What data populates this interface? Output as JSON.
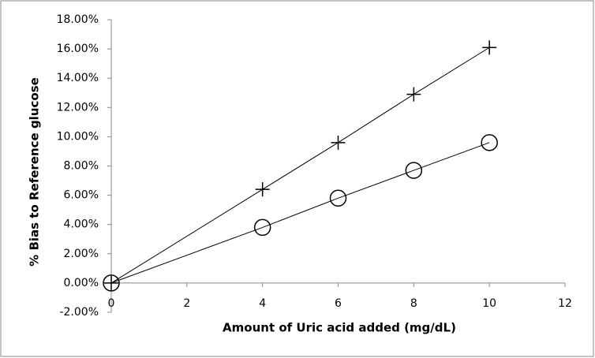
{
  "chart_data": {
    "type": "line",
    "x_label": "Amount of Uric acid added (mg/dL)",
    "y_label": "% Bias to Reference glucose",
    "series": [
      {
        "color": "#000000",
        "marker": "plus",
        "x": [
          0,
          4,
          6,
          8,
          10
        ],
        "values": [
          0,
          6.4,
          9.6,
          12.9,
          16.1
        ]
      },
      {
        "color": "#000000",
        "marker": "circle",
        "x": [
          0,
          4,
          6,
          8,
          10
        ],
        "values": [
          0,
          3.8,
          5.8,
          7.7,
          9.6
        ]
      }
    ],
    "xlim": [
      0,
      12
    ],
    "xticks": [
      0,
      2,
      4,
      6,
      8,
      10,
      12
    ],
    "ylim": [
      -2,
      18
    ],
    "yticks": [
      {
        "value": -2,
        "label": "-2.00%"
      },
      {
        "value": 0,
        "label": "0.00%"
      },
      {
        "value": 2,
        "label": "2.00%"
      },
      {
        "value": 4,
        "label": "4.00%"
      },
      {
        "value": 6,
        "label": "6.00%"
      },
      {
        "value": 8,
        "label": "8.00%"
      },
      {
        "value": 10,
        "label": "10.00%"
      },
      {
        "value": 12,
        "label": "12.00%"
      },
      {
        "value": 14,
        "label": "14.00%"
      },
      {
        "value": 16,
        "label": "16.00%"
      },
      {
        "value": 18,
        "label": "18.00%"
      }
    ],
    "grid": false
  }
}
